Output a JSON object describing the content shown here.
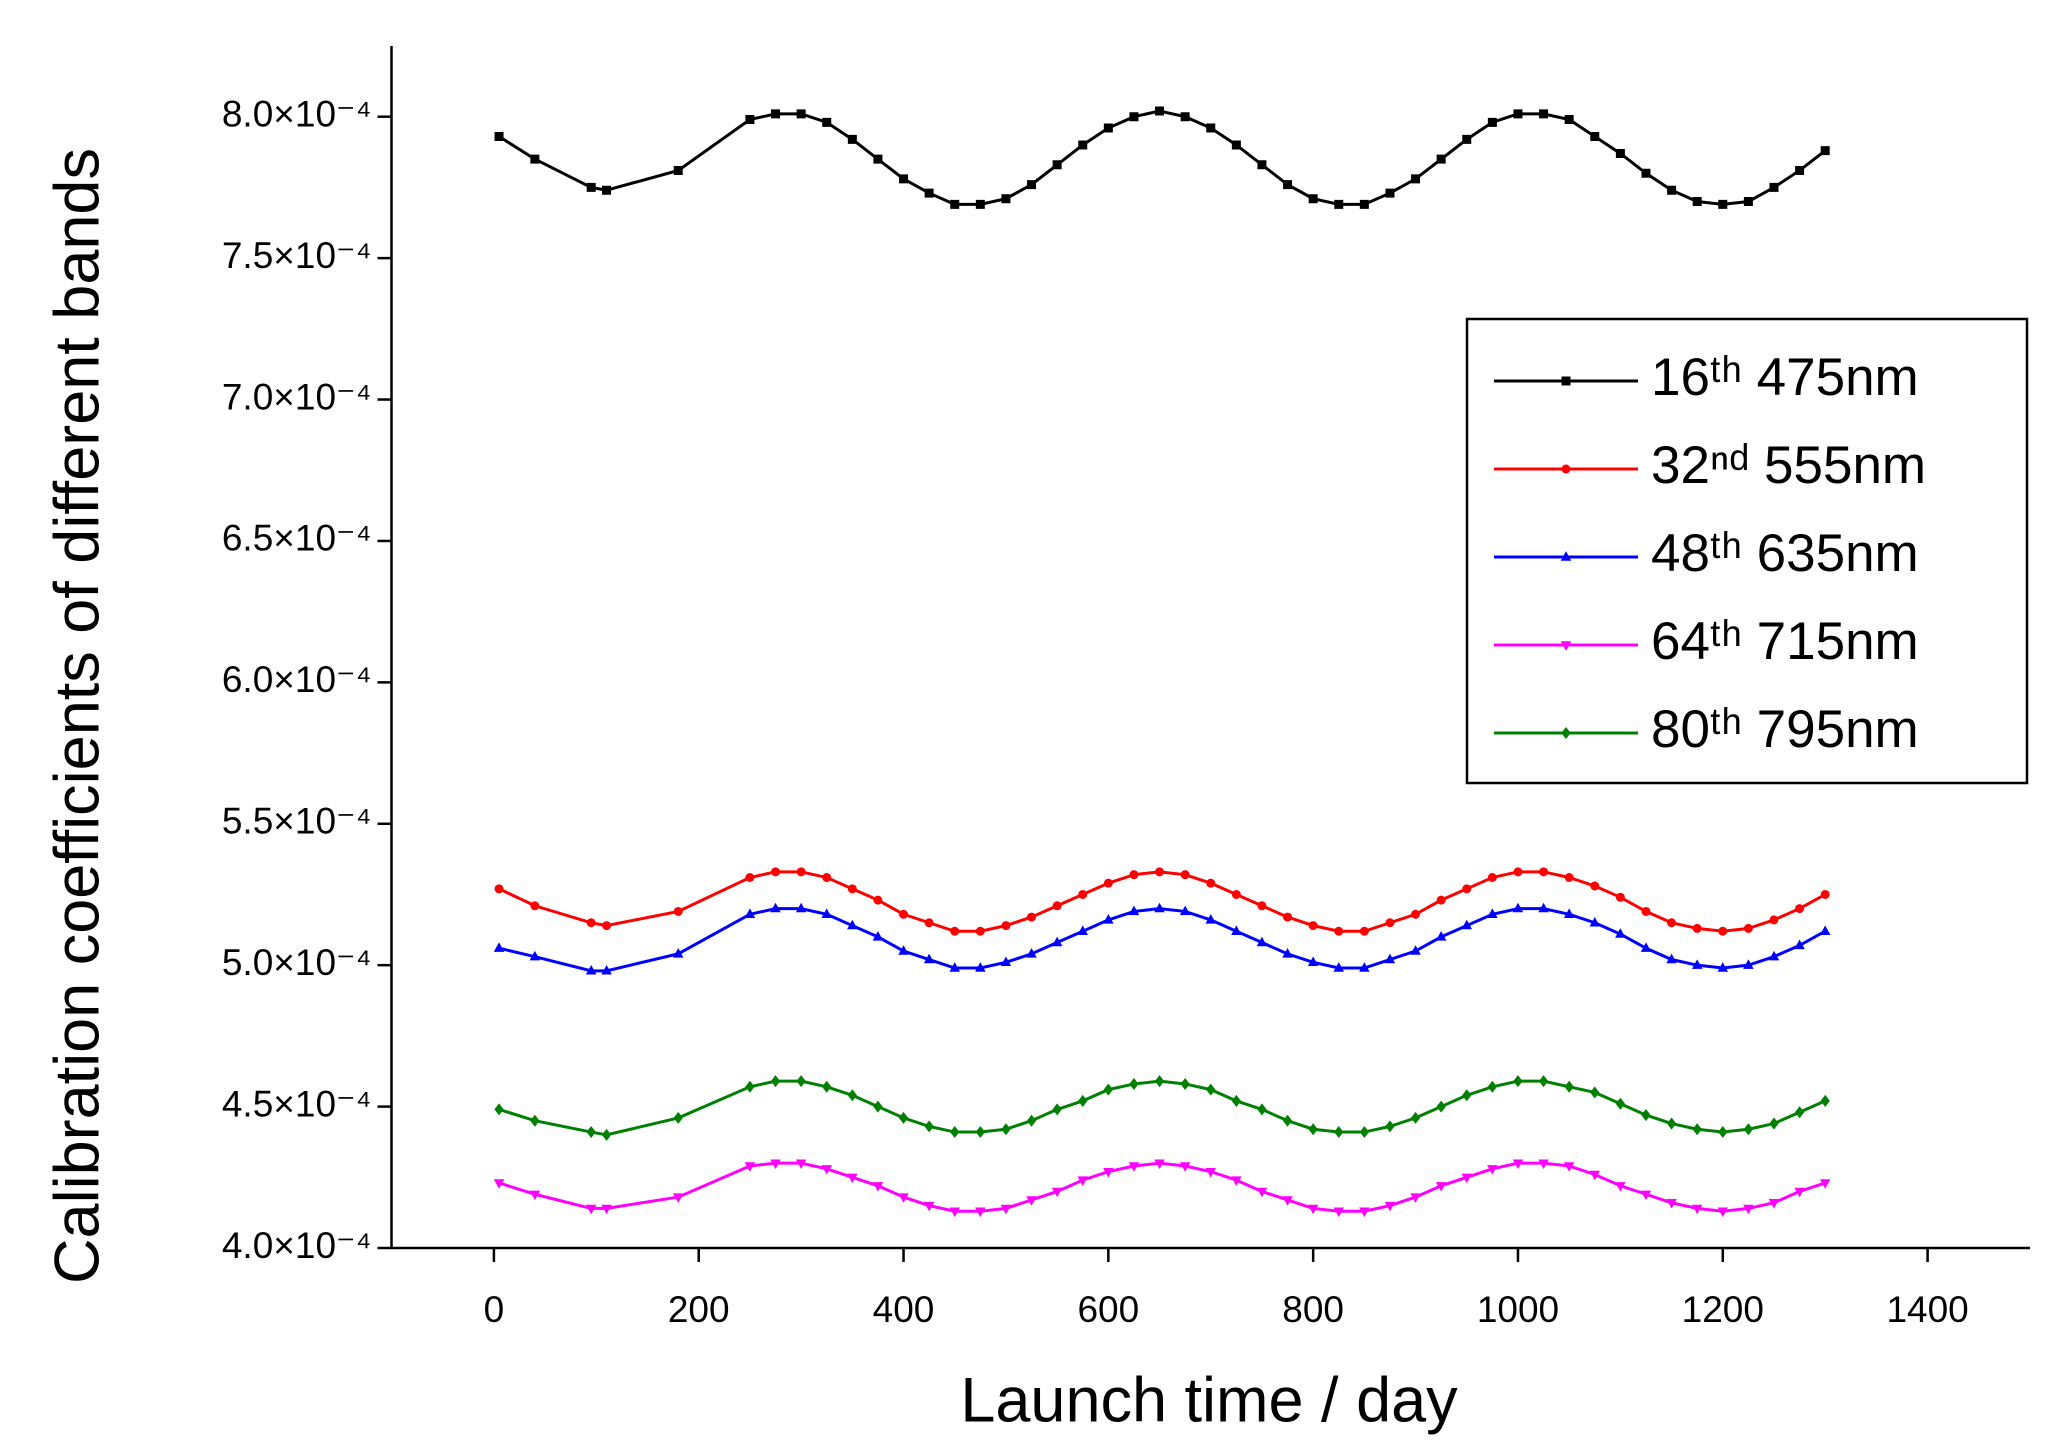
{
  "chart_data": {
    "type": "line",
    "x_label": "Launch time / day",
    "y_label": "Calibration coefficients of different bands",
    "xlim": [
      -100,
      1500
    ],
    "ylim": [
      0.0004,
      0.000825
    ],
    "xticks": [
      0,
      200,
      400,
      600,
      800,
      1000,
      1200,
      1400
    ],
    "yticks": [
      {
        "value": 0.0004,
        "label": "4.0×10⁻⁴"
      },
      {
        "value": 0.00045,
        "label": "4.5×10⁻⁴"
      },
      {
        "value": 0.0005,
        "label": "5.0×10⁻⁴"
      },
      {
        "value": 0.00055,
        "label": "5.5×10⁻⁴"
      },
      {
        "value": 0.0006,
        "label": "6.0×10⁻⁴"
      },
      {
        "value": 0.00065,
        "label": "6.5×10⁻⁴"
      },
      {
        "value": 0.0007,
        "label": "7.0×10⁻⁴"
      },
      {
        "value": 0.00075,
        "label": "7.5×10⁻⁴"
      },
      {
        "value": 0.0008,
        "label": "8.0×10⁻⁴"
      }
    ],
    "legend": "right",
    "x": [
      5,
      40,
      95,
      110,
      180,
      250,
      275,
      300,
      325,
      350,
      375,
      400,
      425,
      450,
      475,
      500,
      525,
      550,
      575,
      600,
      625,
      650,
      675,
      700,
      725,
      750,
      775,
      800,
      825,
      850,
      875,
      900,
      925,
      950,
      975,
      1000,
      1025,
      1050,
      1075,
      1100,
      1125,
      1150,
      1175,
      1200,
      1225,
      1250,
      1275,
      1300
    ],
    "series": [
      {
        "name": "16ᵗʰ  475nm",
        "color": "#000000",
        "marker": "square",
        "values": [
          0.000793,
          0.000785,
          0.000775,
          0.000774,
          0.000781,
          0.000799,
          0.000801,
          0.000801,
          0.000798,
          0.000792,
          0.000785,
          0.000778,
          0.000773,
          0.000769,
          0.000769,
          0.000771,
          0.000776,
          0.000783,
          0.00079,
          0.000796,
          0.0008,
          0.000802,
          0.0008,
          0.000796,
          0.00079,
          0.000783,
          0.000776,
          0.000771,
          0.000769,
          0.000769,
          0.000773,
          0.000778,
          0.000785,
          0.000792,
          0.000798,
          0.000801,
          0.000801,
          0.000799,
          0.000793,
          0.000787,
          0.00078,
          0.000774,
          0.00077,
          0.000769,
          0.00077,
          0.000775,
          0.000781,
          0.000788
        ]
      },
      {
        "name": "32ⁿᵈ  555nm",
        "color": "#ff0000",
        "marker": "circle",
        "values": [
          0.000527,
          0.000521,
          0.000515,
          0.000514,
          0.000519,
          0.000531,
          0.000533,
          0.000533,
          0.000531,
          0.000527,
          0.000523,
          0.000518,
          0.000515,
          0.000512,
          0.000512,
          0.000514,
          0.000517,
          0.000521,
          0.000525,
          0.000529,
          0.000532,
          0.000533,
          0.000532,
          0.000529,
          0.000525,
          0.000521,
          0.000517,
          0.000514,
          0.000512,
          0.000512,
          0.000515,
          0.000518,
          0.000523,
          0.000527,
          0.000531,
          0.000533,
          0.000533,
          0.000531,
          0.000528,
          0.000524,
          0.000519,
          0.000515,
          0.000513,
          0.000512,
          0.000513,
          0.000516,
          0.00052,
          0.000525
        ]
      },
      {
        "name": "48ᵗʰ  635nm",
        "color": "#0000ff",
        "marker": "triangle",
        "values": [
          0.000506,
          0.000503,
          0.000498,
          0.000498,
          0.000504,
          0.000518,
          0.00052,
          0.00052,
          0.000518,
          0.000514,
          0.00051,
          0.000505,
          0.000502,
          0.000499,
          0.000499,
          0.000501,
          0.000504,
          0.000508,
          0.000512,
          0.000516,
          0.000519,
          0.00052,
          0.000519,
          0.000516,
          0.000512,
          0.000508,
          0.000504,
          0.000501,
          0.000499,
          0.000499,
          0.000502,
          0.000505,
          0.00051,
          0.000514,
          0.000518,
          0.00052,
          0.00052,
          0.000518,
          0.000515,
          0.000511,
          0.000506,
          0.000502,
          0.0005,
          0.000499,
          0.0005,
          0.000503,
          0.000507,
          0.000512
        ]
      },
      {
        "name": "64ᵗʰ  715nm",
        "color": "#ff00ff",
        "marker": "down-triangle",
        "values": [
          0.000423,
          0.000419,
          0.000414,
          0.000414,
          0.000418,
          0.000429,
          0.00043,
          0.00043,
          0.000428,
          0.000425,
          0.000422,
          0.000418,
          0.000415,
          0.000413,
          0.000413,
          0.000414,
          0.000417,
          0.00042,
          0.000424,
          0.000427,
          0.000429,
          0.00043,
          0.000429,
          0.000427,
          0.000424,
          0.00042,
          0.000417,
          0.000414,
          0.000413,
          0.000413,
          0.000415,
          0.000418,
          0.000422,
          0.000425,
          0.000428,
          0.00043,
          0.00043,
          0.000429,
          0.000426,
          0.000422,
          0.000419,
          0.000416,
          0.000414,
          0.000413,
          0.000414,
          0.000416,
          0.00042,
          0.000423
        ]
      },
      {
        "name": "80ᵗʰ  795nm",
        "color": "#008000",
        "marker": "diamond",
        "values": [
          0.000449,
          0.000445,
          0.000441,
          0.00044,
          0.000446,
          0.000457,
          0.000459,
          0.000459,
          0.000457,
          0.000454,
          0.00045,
          0.000446,
          0.000443,
          0.000441,
          0.000441,
          0.000442,
          0.000445,
          0.000449,
          0.000452,
          0.000456,
          0.000458,
          0.000459,
          0.000458,
          0.000456,
          0.000452,
          0.000449,
          0.000445,
          0.000442,
          0.000441,
          0.000441,
          0.000443,
          0.000446,
          0.00045,
          0.000454,
          0.000457,
          0.000459,
          0.000459,
          0.000457,
          0.000455,
          0.000451,
          0.000447,
          0.000444,
          0.000442,
          0.000441,
          0.000442,
          0.000444,
          0.000448,
          0.000452
        ]
      }
    ]
  }
}
